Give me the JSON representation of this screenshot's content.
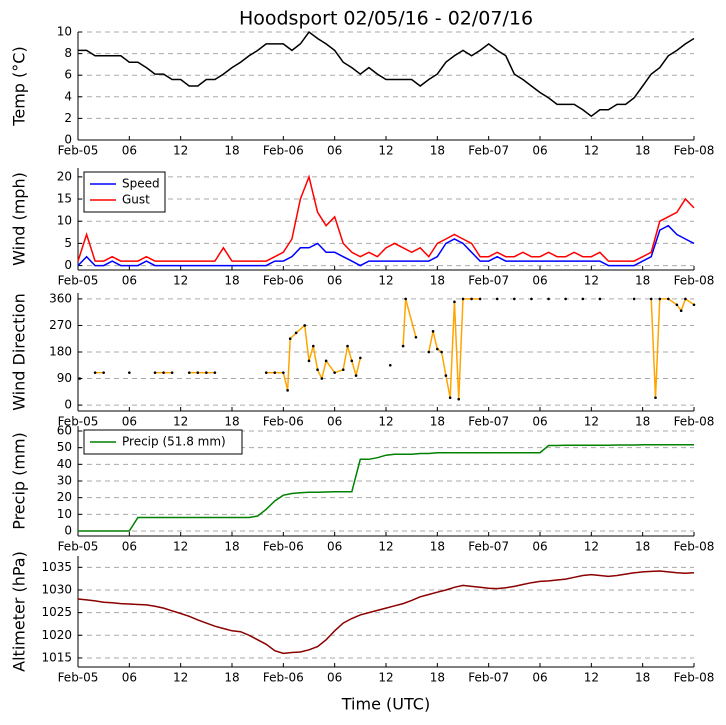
{
  "chart_data": [
    {
      "type": "line",
      "title": "Hoodsport 02/05/16 - 02/07/16",
      "ylabel": "Temp (°C)",
      "grid": true,
      "x": [
        0,
        1,
        2,
        3,
        4,
        5,
        6,
        7,
        8,
        9,
        10,
        11,
        12,
        13,
        14,
        15,
        16,
        17,
        18,
        19,
        20,
        21,
        22,
        23,
        24,
        25,
        26,
        27,
        28,
        29,
        30,
        31,
        32,
        33,
        34,
        35,
        36,
        37,
        38,
        39,
        40,
        41,
        42,
        43,
        44,
        45,
        46,
        47,
        48,
        49,
        50,
        51,
        52,
        53,
        54,
        55,
        56,
        57,
        58,
        59,
        60,
        61,
        62,
        63,
        64,
        65,
        66,
        67,
        68,
        69,
        70,
        71,
        72
      ],
      "xlim": [
        0,
        72
      ],
      "xticks": [
        {
          "value": 0,
          "label": "Feb-05"
        },
        {
          "value": 6,
          "label": "06"
        },
        {
          "value": 12,
          "label": "12"
        },
        {
          "value": 18,
          "label": "18"
        },
        {
          "value": 24,
          "label": "Feb-06"
        },
        {
          "value": 30,
          "label": "06"
        },
        {
          "value": 36,
          "label": "12"
        },
        {
          "value": 42,
          "label": "18"
        },
        {
          "value": 48,
          "label": "Feb-07"
        },
        {
          "value": 54,
          "label": "06"
        },
        {
          "value": 60,
          "label": "12"
        },
        {
          "value": 66,
          "label": "18"
        },
        {
          "value": 72,
          "label": "Feb-08"
        }
      ],
      "ylim": [
        0,
        10
      ],
      "yticks": [
        0,
        2,
        4,
        6,
        8,
        10
      ],
      "series": [
        {
          "color": "#000000",
          "values": [
            8.3,
            8.3,
            7.8,
            7.8,
            7.8,
            7.8,
            7.2,
            7.2,
            6.7,
            6.1,
            6.1,
            5.6,
            5.6,
            5.0,
            5.0,
            5.6,
            5.6,
            6.1,
            6.7,
            7.2,
            7.8,
            8.3,
            8.9,
            8.9,
            8.9,
            8.3,
            8.9,
            10,
            9.4,
            8.9,
            8.3,
            7.2,
            6.7,
            6.1,
            6.7,
            6.1,
            5.6,
            5.6,
            5.6,
            5.6,
            5.0,
            5.6,
            6.1,
            7.2,
            7.8,
            8.3,
            7.8,
            8.3,
            8.9,
            8.3,
            7.8,
            6.1,
            5.6,
            5.0,
            4.4,
            3.9,
            3.3,
            3.3,
            3.3,
            2.8,
            2.2,
            2.8,
            2.8,
            3.3,
            3.3,
            3.9,
            5.0,
            6.1,
            6.7,
            7.8,
            8.3,
            8.9,
            9.4
          ]
        }
      ]
    },
    {
      "type": "line",
      "ylabel": "Wind (mph)",
      "grid": true,
      "legend": "upper left",
      "x": [
        0,
        1,
        2,
        3,
        4,
        5,
        6,
        7,
        8,
        9,
        10,
        11,
        12,
        13,
        14,
        15,
        16,
        17,
        18,
        19,
        20,
        21,
        22,
        23,
        24,
        25,
        26,
        27,
        28,
        29,
        30,
        31,
        32,
        33,
        34,
        35,
        36,
        37,
        38,
        39,
        40,
        41,
        42,
        43,
        44,
        45,
        46,
        47,
        48,
        49,
        50,
        51,
        52,
        53,
        54,
        55,
        56,
        57,
        58,
        59,
        60,
        61,
        62,
        63,
        64,
        65,
        66,
        67,
        68,
        69,
        70,
        71,
        72
      ],
      "xlim": [
        0,
        72
      ],
      "xticks": [
        {
          "value": 0,
          "label": "Feb-05"
        },
        {
          "value": 6,
          "label": "06"
        },
        {
          "value": 12,
          "label": "12"
        },
        {
          "value": 18,
          "label": "18"
        },
        {
          "value": 24,
          "label": "Feb-06"
        },
        {
          "value": 30,
          "label": "06"
        },
        {
          "value": 36,
          "label": "12"
        },
        {
          "value": 42,
          "label": "18"
        },
        {
          "value": 48,
          "label": "Feb-07"
        },
        {
          "value": 54,
          "label": "06"
        },
        {
          "value": 60,
          "label": "12"
        },
        {
          "value": 66,
          "label": "18"
        },
        {
          "value": 72,
          "label": "Feb-08"
        }
      ],
      "ylim": [
        -1,
        22
      ],
      "yticks": [
        0,
        5,
        10,
        15,
        20
      ],
      "series": [
        {
          "name": "Speed",
          "color": "#0000ff",
          "values": [
            0,
            2,
            0,
            0,
            1,
            0,
            0,
            0,
            1,
            0,
            0,
            0,
            0,
            0,
            0,
            0,
            0,
            0,
            0,
            0,
            0,
            0,
            0,
            1,
            1,
            2,
            4,
            4,
            5,
            3,
            3,
            2,
            1,
            0,
            1,
            1,
            1,
            1,
            1,
            1,
            1,
            1,
            2,
            5,
            6,
            5,
            3,
            1,
            1,
            2,
            1,
            1,
            1,
            1,
            1,
            1,
            1,
            1,
            1,
            1,
            1,
            1,
            0,
            0,
            0,
            0,
            1,
            2,
            8,
            9,
            7,
            6,
            5
          ]
        },
        {
          "name": "Gust",
          "color": "#ff0000",
          "values": [
            1,
            7,
            1,
            1,
            2,
            1,
            1,
            1,
            2,
            1,
            1,
            1,
            1,
            1,
            1,
            1,
            1,
            4,
            1,
            1,
            1,
            1,
            1,
            2,
            3,
            6,
            15,
            20,
            12,
            9,
            11,
            5,
            3,
            2,
            3,
            2,
            4,
            5,
            4,
            3,
            4,
            2,
            5,
            6,
            7,
            6,
            5,
            2,
            2,
            3,
            2,
            2,
            3,
            2,
            2,
            3,
            2,
            2,
            3,
            2,
            2,
            3,
            1,
            1,
            1,
            1,
            2,
            3,
            10,
            11,
            12,
            15,
            13
          ]
        }
      ]
    },
    {
      "type": "scatter",
      "ylabel": "Wind Direction",
      "grid": true,
      "x": [
        0.2,
        2,
        3,
        6,
        9,
        10,
        11,
        13,
        14,
        15,
        16,
        22,
        23,
        24,
        24.5,
        24.8,
        25.5,
        26.5,
        27,
        27.5,
        28,
        28.5,
        29,
        30,
        31,
        31.5,
        32,
        32.5,
        33,
        36.5,
        38,
        38.3,
        39.5,
        41,
        41.5,
        42,
        42.5,
        43,
        43.5,
        44,
        44.5,
        45,
        46,
        47,
        49,
        51,
        53,
        55,
        57,
        59,
        61,
        65,
        67,
        67.5,
        68,
        69,
        70,
        70.5,
        71,
        72
      ],
      "xlim": [
        0,
        72
      ],
      "xticks": [
        {
          "value": 0,
          "label": "Feb-05"
        },
        {
          "value": 6,
          "label": "06"
        },
        {
          "value": 12,
          "label": "12"
        },
        {
          "value": 18,
          "label": "18"
        },
        {
          "value": 24,
          "label": "Feb-06"
        },
        {
          "value": 30,
          "label": "06"
        },
        {
          "value": 36,
          "label": "12"
        },
        {
          "value": 42,
          "label": "18"
        },
        {
          "value": 48,
          "label": "Feb-07"
        },
        {
          "value": 54,
          "label": "06"
        },
        {
          "value": 60,
          "label": "12"
        },
        {
          "value": 66,
          "label": "18"
        },
        {
          "value": 72,
          "label": "Feb-08"
        }
      ],
      "ylim": [
        -20,
        380
      ],
      "yticks": [
        0,
        90,
        180,
        270,
        360
      ],
      "series": [
        {
          "color": "#ffa500",
          "marker_color": "#000000",
          "values": [
            90,
            110,
            110,
            110,
            110,
            110,
            110,
            110,
            110,
            110,
            110,
            110,
            110,
            110,
            50,
            225,
            245,
            270,
            150,
            200,
            120,
            90,
            150,
            110,
            120,
            200,
            150,
            100,
            160,
            135,
            200,
            360,
            230,
            180,
            250,
            190,
            180,
            100,
            25,
            350,
            20,
            360,
            360,
            360,
            360,
            360,
            360,
            360,
            360,
            360,
            360,
            360,
            360,
            25,
            360,
            360,
            340,
            320,
            360,
            340
          ]
        }
      ]
    },
    {
      "type": "line",
      "ylabel": "Precip (mm)",
      "grid": true,
      "legend": "upper left",
      "x": [
        0,
        1,
        2,
        3,
        4,
        5,
        6,
        7,
        8,
        9,
        10,
        11,
        12,
        13,
        14,
        15,
        16,
        17,
        18,
        19,
        20,
        21,
        22,
        23,
        24,
        25,
        26,
        27,
        28,
        29,
        30,
        31,
        32,
        33,
        34,
        35,
        36,
        37,
        38,
        39,
        40,
        41,
        42,
        43,
        44,
        45,
        46,
        47,
        48,
        49,
        50,
        51,
        52,
        53,
        54,
        55,
        56,
        57,
        58,
        59,
        60,
        61,
        62,
        63,
        64,
        65,
        66,
        67,
        68,
        69,
        70,
        71,
        72
      ],
      "xlim": [
        0,
        72
      ],
      "xticks": [
        {
          "value": 0,
          "label": "Feb-05"
        },
        {
          "value": 6,
          "label": "06"
        },
        {
          "value": 12,
          "label": "12"
        },
        {
          "value": 18,
          "label": "18"
        },
        {
          "value": 24,
          "label": "Feb-06"
        },
        {
          "value": 30,
          "label": "06"
        },
        {
          "value": 36,
          "label": "12"
        },
        {
          "value": 42,
          "label": "18"
        },
        {
          "value": 48,
          "label": "Feb-07"
        },
        {
          "value": 54,
          "label": "06"
        },
        {
          "value": 60,
          "label": "12"
        },
        {
          "value": 66,
          "label": "18"
        },
        {
          "value": 72,
          "label": "Feb-08"
        }
      ],
      "ylim": [
        -3,
        63
      ],
      "yticks": [
        0,
        10,
        20,
        30,
        40,
        50,
        60
      ],
      "series": [
        {
          "name": "Precip (51.8 mm)",
          "color": "#008000",
          "values": [
            0,
            0,
            0,
            0,
            0,
            0,
            0,
            8.1,
            8.1,
            8.1,
            8.1,
            8.1,
            8.1,
            8.1,
            8.1,
            8.1,
            8.1,
            8.1,
            8.1,
            8.1,
            8.1,
            9,
            13,
            18,
            21.5,
            22.5,
            23,
            23.2,
            23.3,
            23.4,
            23.5,
            23.5,
            23.5,
            43,
            43,
            44,
            45.5,
            46,
            46,
            46,
            46.5,
            46.5,
            47,
            47,
            47,
            47,
            47,
            47,
            47,
            47,
            47,
            47,
            47,
            47,
            47,
            51.3,
            51.3,
            51.4,
            51.4,
            51.4,
            51.5,
            51.5,
            51.5,
            51.6,
            51.6,
            51.6,
            51.7,
            51.7,
            51.7,
            51.8,
            51.8,
            51.8,
            51.8
          ]
        }
      ]
    },
    {
      "type": "line",
      "ylabel": "Altimeter (hPa)",
      "xlabel": "Time (UTC)",
      "grid": true,
      "x": [
        0,
        1,
        2,
        3,
        4,
        5,
        6,
        7,
        8,
        9,
        10,
        11,
        12,
        13,
        14,
        15,
        16,
        17,
        18,
        19,
        20,
        21,
        22,
        23,
        24,
        25,
        26,
        27,
        28,
        29,
        30,
        31,
        32,
        33,
        34,
        35,
        36,
        37,
        38,
        39,
        40,
        41,
        42,
        43,
        44,
        45,
        46,
        47,
        48,
        49,
        50,
        51,
        52,
        53,
        54,
        55,
        56,
        57,
        58,
        59,
        60,
        61,
        62,
        63,
        64,
        65,
        66,
        67,
        68,
        69,
        70,
        71,
        72
      ],
      "xlim": [
        0,
        72
      ],
      "xticks": [
        {
          "value": 0,
          "label": "Feb-05"
        },
        {
          "value": 6,
          "label": "06"
        },
        {
          "value": 12,
          "label": "12"
        },
        {
          "value": 18,
          "label": "18"
        },
        {
          "value": 24,
          "label": "Feb-06"
        },
        {
          "value": 30,
          "label": "06"
        },
        {
          "value": 36,
          "label": "12"
        },
        {
          "value": 42,
          "label": "18"
        },
        {
          "value": 48,
          "label": "Feb-07"
        },
        {
          "value": 54,
          "label": "06"
        },
        {
          "value": 60,
          "label": "12"
        },
        {
          "value": 66,
          "label": "18"
        },
        {
          "value": 72,
          "label": "Feb-08"
        }
      ],
      "ylim": [
        1013,
        1037.5
      ],
      "yticks": [
        1015,
        1020,
        1025,
        1030,
        1035
      ],
      "series": [
        {
          "color": "#8b0000",
          "values": [
            1028,
            1027.8,
            1027.6,
            1027.3,
            1027.2,
            1027,
            1026.9,
            1026.8,
            1026.7,
            1026.4,
            1026,
            1025.4,
            1024.8,
            1024.2,
            1023.4,
            1022.7,
            1022,
            1021.5,
            1021,
            1020.8,
            1020,
            1019,
            1018,
            1016.6,
            1016,
            1016.2,
            1016.3,
            1016.8,
            1017.5,
            1019,
            1021,
            1022.7,
            1023.7,
            1024.5,
            1025,
            1025.5,
            1026,
            1026.5,
            1027,
            1027.7,
            1028.5,
            1029,
            1029.5,
            1030,
            1030.6,
            1031,
            1030.8,
            1030.6,
            1030.4,
            1030.3,
            1030.5,
            1030.8,
            1031.2,
            1031.6,
            1031.9,
            1032,
            1032.2,
            1032.4,
            1032.8,
            1033.2,
            1033.4,
            1033.2,
            1033,
            1033.2,
            1033.5,
            1033.8,
            1034,
            1034.1,
            1034.2,
            1034,
            1033.8,
            1033.7,
            1033.8
          ]
        }
      ]
    }
  ]
}
